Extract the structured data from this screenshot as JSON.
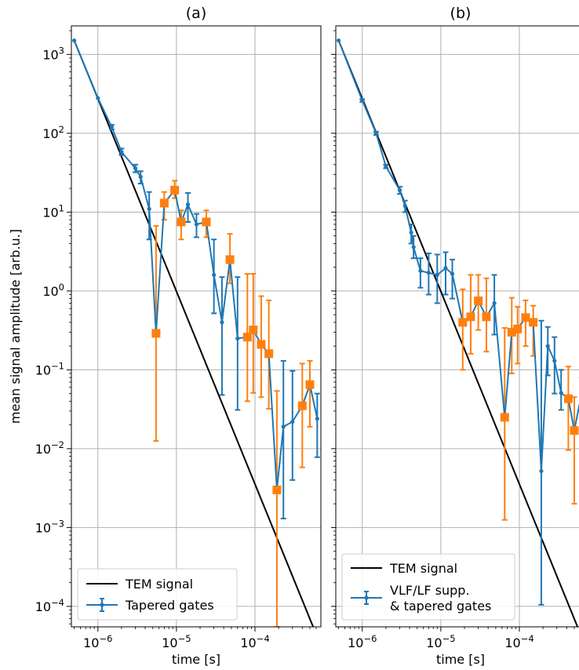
{
  "figure": {
    "ylabel": "mean signal amplitude [arb.u.]",
    "y_tick_labels": [
      {
        "value": 0.0001,
        "base": "10",
        "exp": "−4"
      },
      {
        "value": 0.001,
        "base": "10",
        "exp": "−3"
      },
      {
        "value": 0.01,
        "base": "10",
        "exp": "−2"
      },
      {
        "value": 0.1,
        "base": "10",
        "exp": "−1"
      },
      {
        "value": 1,
        "base": "10",
        "exp": "0"
      },
      {
        "value": 10,
        "base": "10",
        "exp": "1"
      },
      {
        "value": 100,
        "base": "10",
        "exp": "2"
      },
      {
        "value": 1000,
        "base": "10",
        "exp": "3"
      }
    ],
    "x_tick_labels": [
      {
        "value": 1e-06,
        "base": "10",
        "exp": "−6"
      },
      {
        "value": 1e-05,
        "base": "10",
        "exp": "−5"
      },
      {
        "value": 0.0001,
        "base": "10",
        "exp": "−4"
      }
    ]
  },
  "chart_data": [
    {
      "type": "line",
      "title": "(a)",
      "xlabel": "time [s]",
      "ylabel": "mean signal amplitude [arb.u.]",
      "xscale": "log",
      "yscale": "log",
      "xlim": [
        4.6e-07,
        0.00069
      ],
      "ylim": [
        5.5e-05,
        2300
      ],
      "grid": true,
      "legend_position": "lower-left",
      "colors": {
        "tem": "#000000",
        "series": "#1f77b4",
        "highlight": "#ff7f0e"
      },
      "tem_signal": {
        "name": "TEM signal",
        "x": [
          5e-07,
          0.00055
        ],
        "y": [
          1500,
          5.5e-05
        ]
      },
      "series": [
        {
          "name": "Tapered gates",
          "x": [
            5e-07,
            1e-06,
            1.5e-06,
            2e-06,
            3e-06,
            3.5e-06,
            4.5e-06,
            5.5e-06,
            7e-06,
            9.5e-06,
            1.15e-05,
            1.4e-05,
            1.8e-05,
            2.4e-05,
            3e-05,
            3.8e-05,
            4.8e-05,
            6e-05,
            8e-05,
            9.5e-05,
            0.00012,
            0.00015,
            0.00019,
            0.00023,
            0.0003,
            0.0004,
            0.0005,
            0.00062
          ],
          "y": [
            1500,
            280,
            120,
            58,
            36,
            28,
            11,
            0.29,
            13,
            19,
            7.5,
            12.5,
            7,
            7.5,
            1.6,
            0.4,
            2.5,
            0.25,
            0.26,
            0.32,
            0.21,
            0.16,
            0.003,
            0.019,
            0.022,
            0.035,
            0.065,
            0.024
          ],
          "y_low": [
            1500,
            280,
            112,
            53,
            32,
            23,
            4.5,
            0.0125,
            8,
            15,
            4.5,
            7.5,
            4.8,
            4.8,
            0.52,
            0.048,
            1.25,
            0.031,
            0.04,
            0.051,
            0.045,
            0.032,
            5.5e-05,
            0.0013,
            0.004,
            0.0058,
            0.019,
            0.0078
          ],
          "y_high": [
            1500,
            280,
            128,
            64,
            40,
            33,
            18,
            6.7,
            18,
            25,
            10.5,
            17.5,
            9.5,
            10.5,
            4.5,
            1.5,
            5.3,
            1.5,
            1.65,
            1.65,
            0.86,
            0.76,
            0.054,
            0.13,
            0.097,
            0.12,
            0.13,
            0.05
          ],
          "highlight_indices": [
            7,
            8,
            9,
            10,
            13,
            16,
            18,
            19,
            20,
            21,
            22,
            25,
            26
          ]
        }
      ]
    },
    {
      "type": "line",
      "title": "(b)",
      "xlabel": "time [s]",
      "xscale": "log",
      "yscale": "log",
      "xlim": [
        4.6e-07,
        0.00069
      ],
      "ylim": [
        5.5e-05,
        2300
      ],
      "grid": true,
      "legend_position": "lower-left",
      "colors": {
        "tem": "#000000",
        "series": "#1f77b4",
        "highlight": "#ff7f0e"
      },
      "tem_signal": {
        "name": "TEM signal",
        "x": [
          5e-07,
          0.00055
        ],
        "y": [
          1500,
          5.5e-05
        ]
      },
      "series": [
        {
          "name": "VLF/LF supp.\n& tapered gates",
          "x": [
            5e-07,
            1e-06,
            1.5e-06,
            2e-06,
            3e-06,
            3.5e-06,
            4.2e-06,
            4.5e-06,
            5.5e-06,
            7e-06,
            9e-06,
            1.15e-05,
            1.4e-05,
            1.9e-05,
            2.4e-05,
            3e-05,
            3.8e-05,
            4.8e-05,
            6.5e-05,
            8e-05,
            9.5e-05,
            0.00012,
            0.00015,
            0.00019,
            0.00023,
            0.00028,
            0.00034,
            0.00042,
            0.0005,
            0.00062
          ],
          "y": [
            1500,
            260,
            100,
            38,
            19,
            12,
            5.5,
            3.6,
            1.8,
            1.7,
            1.6,
            1.95,
            1.65,
            0.4,
            0.47,
            0.75,
            0.47,
            0.7,
            0.025,
            0.3,
            0.33,
            0.46,
            0.4,
            0.0052,
            0.2,
            0.13,
            0.051,
            0.043,
            0.017,
            0.05
          ],
          "y_low": [
            1500,
            250,
            95,
            36,
            17,
            10,
            4,
            2.6,
            1.1,
            0.9,
            0.7,
            0.9,
            0.8,
            0.1,
            0.16,
            0.32,
            0.17,
            0.28,
            0.00125,
            0.09,
            0.12,
            0.2,
            0.15,
            0.000105,
            0.085,
            0.05,
            0.031,
            0.0096,
            0.002,
            0.03
          ],
          "y_high": [
            1500,
            270,
            105,
            40,
            21,
            14,
            7,
            5,
            2.6,
            3,
            2.9,
            3.1,
            2.5,
            1.05,
            1.6,
            1.6,
            1.45,
            1.6,
            0.34,
            0.82,
            0.63,
            0.76,
            0.65,
            0.42,
            0.35,
            0.26,
            0.1,
            0.11,
            0.045,
            0.08
          ],
          "highlight_indices": [
            13,
            14,
            15,
            16,
            18,
            19,
            20,
            21,
            22,
            27,
            28
          ]
        }
      ]
    }
  ]
}
